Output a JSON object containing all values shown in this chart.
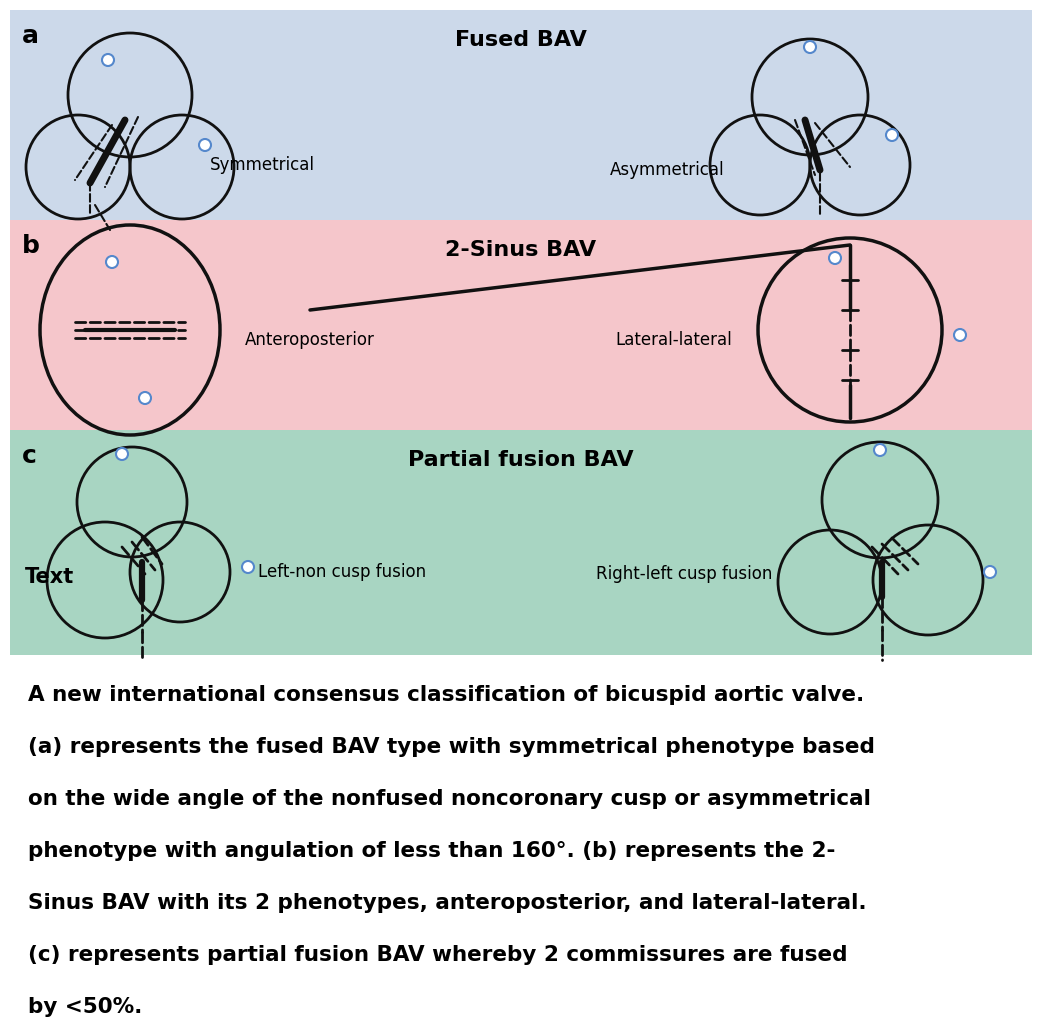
{
  "bg_a": "#ccd9ea",
  "bg_b": "#f5c6cb",
  "bg_c": "#a8d5c2",
  "bg_white": "#ffffff",
  "title_a": "Fused BAV",
  "title_b": "2-Sinus BAV",
  "title_c": "Partial fusion BAV",
  "label_a1": "Symmetrical",
  "label_a2": "Asymmetrical",
  "label_b1": "Anteroposterior",
  "label_b2": "Lateral-lateral",
  "label_c1": "Left-non cusp fusion",
  "label_c2": "Right-left cusp fusion",
  "section_label_a": "a",
  "section_label_b": "b",
  "section_label_c": "c",
  "caption": "A new international consensus classification of bicuspid aortic valve.\n(a) represents the fused BAV type with symmetrical phenotype based\non the wide angle of the nonfused noncoronary cusp or asymmetrical\nphenotype with angulation of less than 160°. (b) represents the 2-\nSinus BAV with its 2 phenotypes, anteroposterior, and lateral-lateral.\n(c) represents partial fusion BAV whereby 2 commissures are fused\nby <50%.",
  "text_overlay": "Text",
  "line_color": "#111111",
  "dot_color": "#5588cc"
}
